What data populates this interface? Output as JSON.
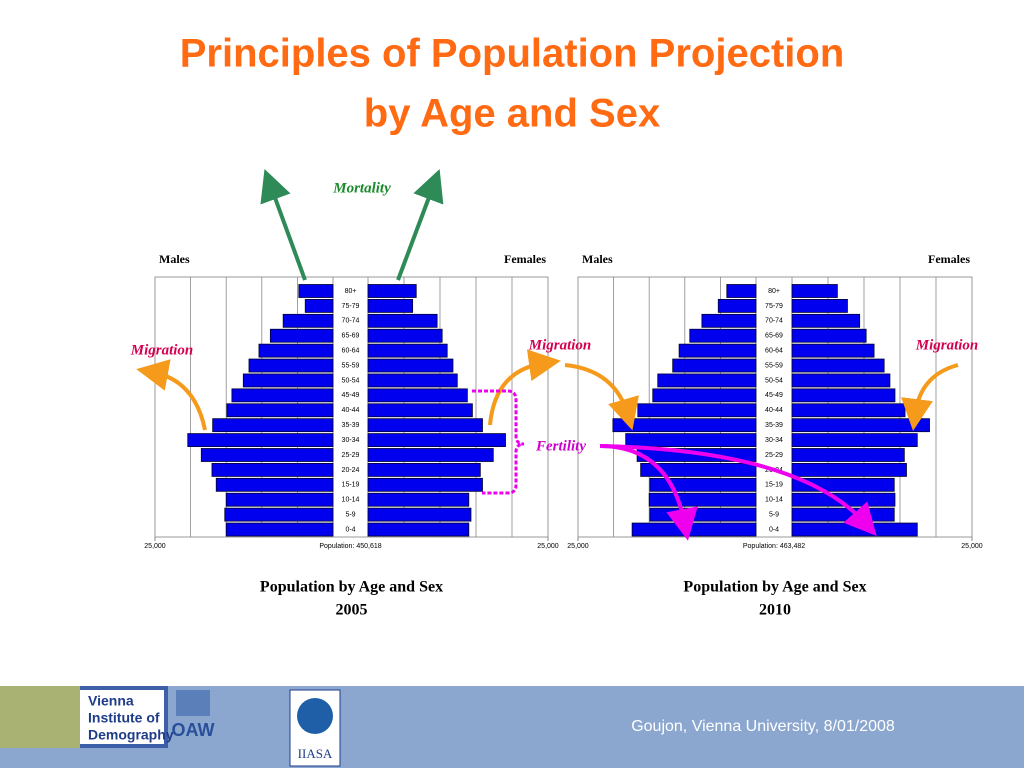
{
  "title": [
    "Principles of Population Projection",
    "by Age and Sex"
  ],
  "annotations": {
    "mortality": "Mortality",
    "migration": "Migration",
    "fertility": "Fertility"
  },
  "footer": {
    "text": "Goujon,  Vienna University, 8/01/2008",
    "logos": [
      "Vienna",
      "Institute of",
      "Demography",
      "OAW",
      "IIASA"
    ]
  },
  "chart_data": [
    {
      "type": "pyramid",
      "categories": [
        "80+",
        "75-79",
        "70-74",
        "65-69",
        "60-64",
        "55-59",
        "50-54",
        "45-49",
        "40-44",
        "35-39",
        "30-34",
        "25-29",
        "20-24",
        "15-19",
        "10-14",
        "5-9",
        "0-4"
      ],
      "series": [
        {
          "name": "Males",
          "color": "#0000ee",
          "values": [
            4800,
            3900,
            7000,
            8800,
            10400,
            11800,
            12600,
            14200,
            14900,
            16900,
            20400,
            18500,
            17000,
            16400,
            15000,
            15200,
            15000
          ]
        },
        {
          "name": "Females",
          "color": "#0000ee",
          "values": [
            6700,
            6200,
            9600,
            10300,
            11000,
            11800,
            12400,
            13800,
            14500,
            15900,
            19100,
            17400,
            15600,
            15900,
            14000,
            14300,
            14000
          ]
        }
      ],
      "xlim": [
        0,
        25000
      ],
      "xticks": [
        {
          "value": 25000,
          "label": "25,000"
        }
      ],
      "xgrid": [
        5000,
        10000,
        15000,
        20000
      ],
      "population_label": "Population:  450,618",
      "caption": [
        "Population by Age and Sex",
        "2005"
      ]
    },
    {
      "type": "pyramid",
      "categories": [
        "80+",
        "75-79",
        "70-74",
        "65-69",
        "60-64",
        "55-59",
        "50-54",
        "45-49",
        "40-44",
        "35-39",
        "30-34",
        "25-29",
        "20-24",
        "15-19",
        "10-14",
        "5-9",
        "0-4"
      ],
      "series": [
        {
          "name": "Males",
          "color": "#0000ee",
          "values": [
            4100,
            5300,
            7600,
            9300,
            10800,
            11700,
            13800,
            14500,
            16600,
            20100,
            18300,
            16700,
            16200,
            14900,
            15000,
            14900,
            17400
          ]
        },
        {
          "name": "Females",
          "color": "#0000ee",
          "values": [
            6300,
            7700,
            9400,
            10300,
            11400,
            12800,
            13600,
            14300,
            15700,
            19100,
            17400,
            15600,
            15900,
            14200,
            14300,
            14200,
            17400
          ]
        }
      ],
      "xlim": [
        0,
        25000
      ],
      "xticks": [
        {
          "value": 25000,
          "label": "25,000"
        }
      ],
      "xgrid": [
        5000,
        10000,
        15000,
        20000
      ],
      "population_label": "Population:  463,482",
      "caption": [
        "Population by Age and Sex",
        "2010"
      ]
    }
  ]
}
